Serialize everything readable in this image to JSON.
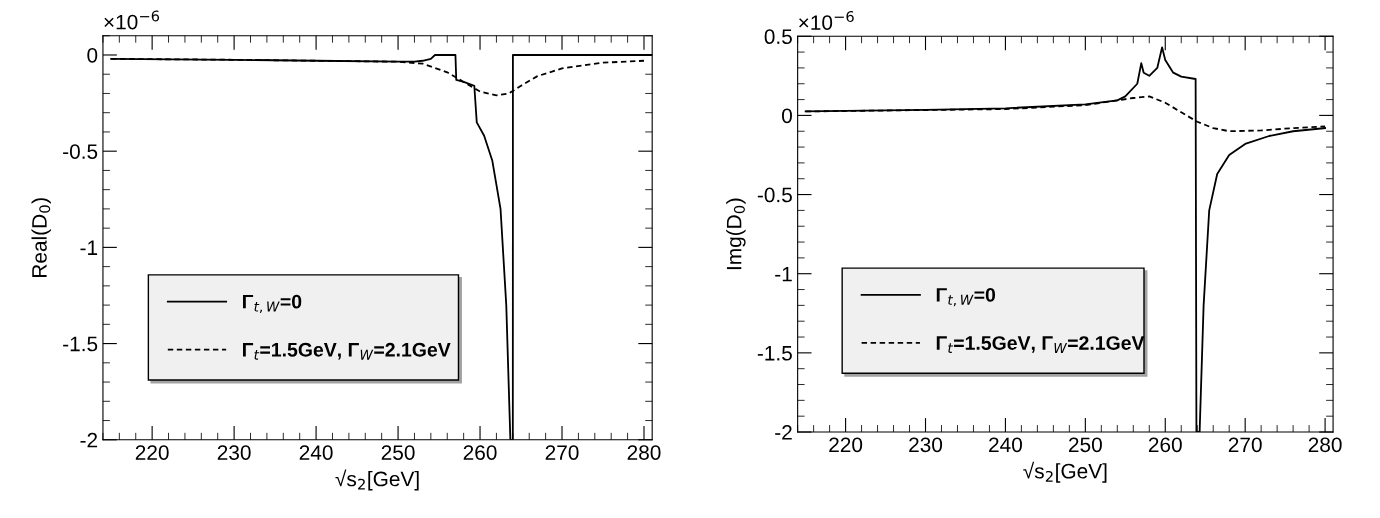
{
  "chart_data": [
    {
      "type": "line",
      "xlabel": "√s$_{2}$[GeV]",
      "ylabel": "Real(D$_{0}$)",
      "annotations": [
        "×10$^{−6}$"
      ],
      "xlim": [
        214,
        281
      ],
      "ylim": [
        -2,
        0.1
      ],
      "xticks": [
        220,
        230,
        240,
        250,
        260,
        270,
        280
      ],
      "yticks": [
        {
          "value": -2,
          "label": "-2"
        },
        {
          "value": -1.5,
          "label": "-1.5"
        },
        {
          "value": -1,
          "label": "-1"
        },
        {
          "value": -0.5,
          "label": "-0.5"
        },
        0
      ],
      "legend": "bottom left",
      "grid": false,
      "series": [
        {
          "name": "Γ$_{t,W}$=0",
          "color": "#000000",
          "line_style": "solid",
          "x": [
            215,
            230,
            240,
            250,
            252,
            253,
            254,
            254.5,
            257,
            257.1,
            258,
            259.3,
            259.6,
            260.5,
            261.5,
            262.5,
            263.2,
            263.7,
            264,
            264.01,
            270,
            281
          ],
          "values": [
            -0.02,
            -0.025,
            -0.03,
            -0.035,
            -0.035,
            -0.03,
            -0.02,
            0,
            0,
            -0.13,
            -0.14,
            -0.16,
            -0.35,
            -0.42,
            -0.55,
            -0.8,
            -1.3,
            -2,
            -2,
            0,
            0,
            0
          ]
        },
        {
          "name": "Γ$_{t}$=1.5GeV, Γ$_{W}$=2.1GeV",
          "color": "#000000",
          "line_style": "dashed",
          "x": [
            215,
            230,
            240,
            250,
            253,
            256,
            258,
            260,
            262,
            263.5,
            265,
            267,
            270,
            275,
            280
          ],
          "values": [
            -0.02,
            -0.025,
            -0.03,
            -0.035,
            -0.045,
            -0.09,
            -0.14,
            -0.19,
            -0.21,
            -0.2,
            -0.16,
            -0.11,
            -0.07,
            -0.04,
            -0.03
          ]
        }
      ]
    },
    {
      "type": "line",
      "xlabel": "√s$_{2}$[GeV]",
      "ylabel": "Img(D$_{0}$)",
      "annotations": [
        "×10$^{−6}$"
      ],
      "xlim": [
        214,
        281
      ],
      "ylim": [
        -2,
        0.5
      ],
      "xticks": [
        220,
        230,
        240,
        250,
        260,
        270,
        280
      ],
      "yticks": [
        {
          "value": -2,
          "label": "-2"
        },
        {
          "value": -1.5,
          "label": "-1.5"
        },
        {
          "value": -1,
          "label": "-1"
        },
        {
          "value": -0.5,
          "label": "-0.5"
        },
        0,
        0.5
      ],
      "legend": "bottom left",
      "grid": false,
      "series": [
        {
          "name": "Γ$_{t,W}$=0",
          "color": "#000000",
          "line_style": "solid",
          "x": [
            215,
            230,
            240,
            250,
            254,
            255,
            256.5,
            257,
            257.3,
            258,
            259,
            259.6,
            260,
            261,
            262,
            263.8,
            263.9,
            264.3,
            264.8,
            265.5,
            266.5,
            268,
            270,
            273,
            276,
            280
          ],
          "values": [
            0.025,
            0.035,
            0.045,
            0.07,
            0.095,
            0.12,
            0.2,
            0.33,
            0.27,
            0.25,
            0.3,
            0.43,
            0.35,
            0.27,
            0.245,
            0.23,
            -2,
            -2,
            -1.2,
            -0.6,
            -0.37,
            -0.25,
            -0.18,
            -0.13,
            -0.1,
            -0.08
          ]
        },
        {
          "name": "Γ$_{t}$=1.5GeV, Γ$_{W}$=2.1GeV",
          "color": "#000000",
          "line_style": "dashed",
          "x": [
            215,
            240,
            250,
            254,
            256,
            258,
            260,
            262,
            264,
            266,
            268,
            272,
            276,
            280
          ],
          "values": [
            0.025,
            0.04,
            0.065,
            0.095,
            0.11,
            0.12,
            0.08,
            0.02,
            -0.04,
            -0.08,
            -0.1,
            -0.095,
            -0.08,
            -0.07
          ]
        }
      ]
    }
  ]
}
